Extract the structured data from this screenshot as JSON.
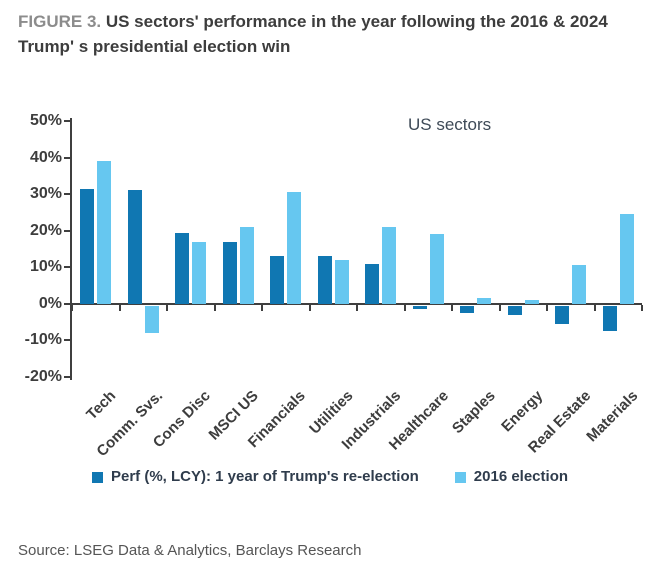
{
  "header": {
    "figure_label": "FIGURE 3.",
    "title": " US sectors' performance in the year following the 2016 & 2024 Trump' s presidential election win"
  },
  "chart_data": {
    "type": "bar",
    "annotation": "US sectors",
    "categories": [
      "Tech",
      "Comm. Svs.",
      "Cons Disc",
      "MSCI US",
      "Financials",
      "Utilities",
      "Industrials",
      "Healthcare",
      "Staples",
      "Energy",
      "Real Estate",
      "Materials"
    ],
    "series": [
      {
        "name": "Perf (%, LCY): 1 year of Trump's re-election",
        "color": "#1077b2",
        "values": [
          31.5,
          31,
          19.5,
          17,
          13,
          13,
          11,
          -1,
          -2,
          -2.5,
          -5,
          -7
        ]
      },
      {
        "name": "2016 election",
        "color": "#66c7f0",
        "values": [
          39,
          -7.5,
          17,
          21,
          30.5,
          12,
          21,
          19,
          1.5,
          1,
          10.5,
          24.5
        ]
      }
    ],
    "ylim": [
      -20,
      50
    ],
    "ytick_values": [
      50,
      40,
      30,
      20,
      10,
      0,
      -10,
      -20
    ],
    "ytick_labels": [
      "50%",
      "40%",
      "30%",
      "20%",
      "10%",
      "0%",
      "-10%",
      "-20%"
    ],
    "axis_color": "#3f3f3f",
    "grid": false,
    "legend_position": "bottom",
    "xlabel": "",
    "ylabel": ""
  },
  "footer": {
    "source": "Source: LSEG Data & Analytics, Barclays Research"
  }
}
